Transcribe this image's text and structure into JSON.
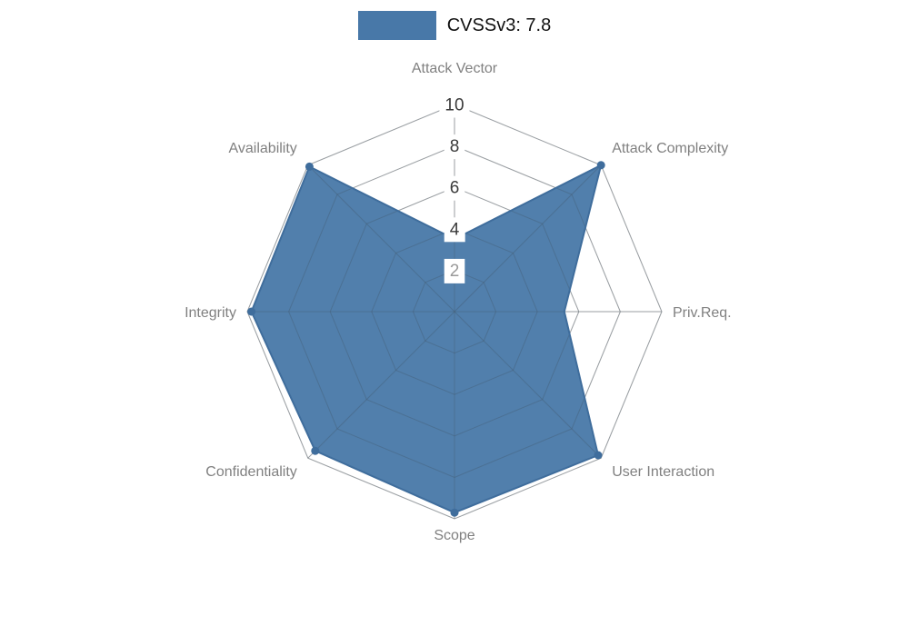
{
  "chart_data": {
    "type": "radar",
    "title": "CVSSv3: 7.8",
    "categories": [
      "Attack Vector",
      "Attack Complexity",
      "Priv.Req.",
      "User Interaction",
      "Scope",
      "Confidentiality",
      "Integrity",
      "Availability"
    ],
    "series": [
      {
        "name": "CVSSv3: 7.8",
        "color": "#4878a8",
        "stroke_color": "#3f6d9c",
        "values": [
          3.5,
          10,
          5.3,
          9.8,
          9.7,
          9.5,
          9.8,
          9.9
        ],
        "markers": [
          false,
          true,
          false,
          true,
          true,
          true,
          true,
          true
        ]
      }
    ],
    "rmax": 10,
    "rticks": [
      2,
      4,
      6,
      8,
      10
    ],
    "legend_position": "top-center",
    "grid": true,
    "style": {
      "background": "#ffffff",
      "grid_color": "#bdbdbd",
      "grid_overlay_color": "rgba(70,85,100,0.30)",
      "axis_label_color": "#808080",
      "tick_color": "#3a3a3a",
      "tick_color_innermost": "#9a9a9a",
      "tick_box_color": "#ffffff",
      "fill_opacity": 0.95
    }
  }
}
